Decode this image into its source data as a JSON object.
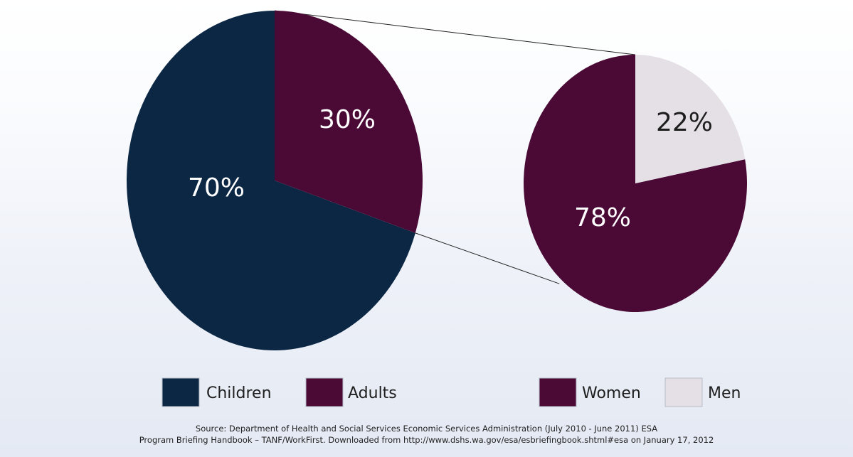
{
  "chart_data": [
    {
      "type": "pie",
      "categories": [
        "Children",
        "Adults"
      ],
      "values": [
        70,
        30
      ],
      "data_labels": [
        "70%",
        "30%"
      ],
      "colors": [
        "#0b2744",
        "#4a0a35"
      ],
      "exploded_slice": "Adults"
    },
    {
      "type": "pie",
      "categories": [
        "Women",
        "Men"
      ],
      "values": [
        78,
        22
      ],
      "data_labels": [
        "78%",
        "22%"
      ],
      "colors": [
        "#4a0a35",
        "#e5e0e6"
      ],
      "breakdown_of": "Adults"
    }
  ],
  "legend": [
    {
      "label": "Children",
      "color": "#0b2744"
    },
    {
      "label": "Adults",
      "color": "#4a0a35"
    },
    {
      "label": "Women",
      "color": "#4a0a35"
    },
    {
      "label": "Men",
      "color": "#e5e0e6"
    }
  ],
  "source": {
    "line1": "Source: Department of Health and Social Services Economic Services Administration (July 2010 - June 2011) ESA",
    "line2": "Program Briefing Handbook – TANF/WorkFirst. Downloaded from http://www.dshs.wa.gov/esa/esbriefingbook.shtml#esa on January 17, 2012"
  }
}
